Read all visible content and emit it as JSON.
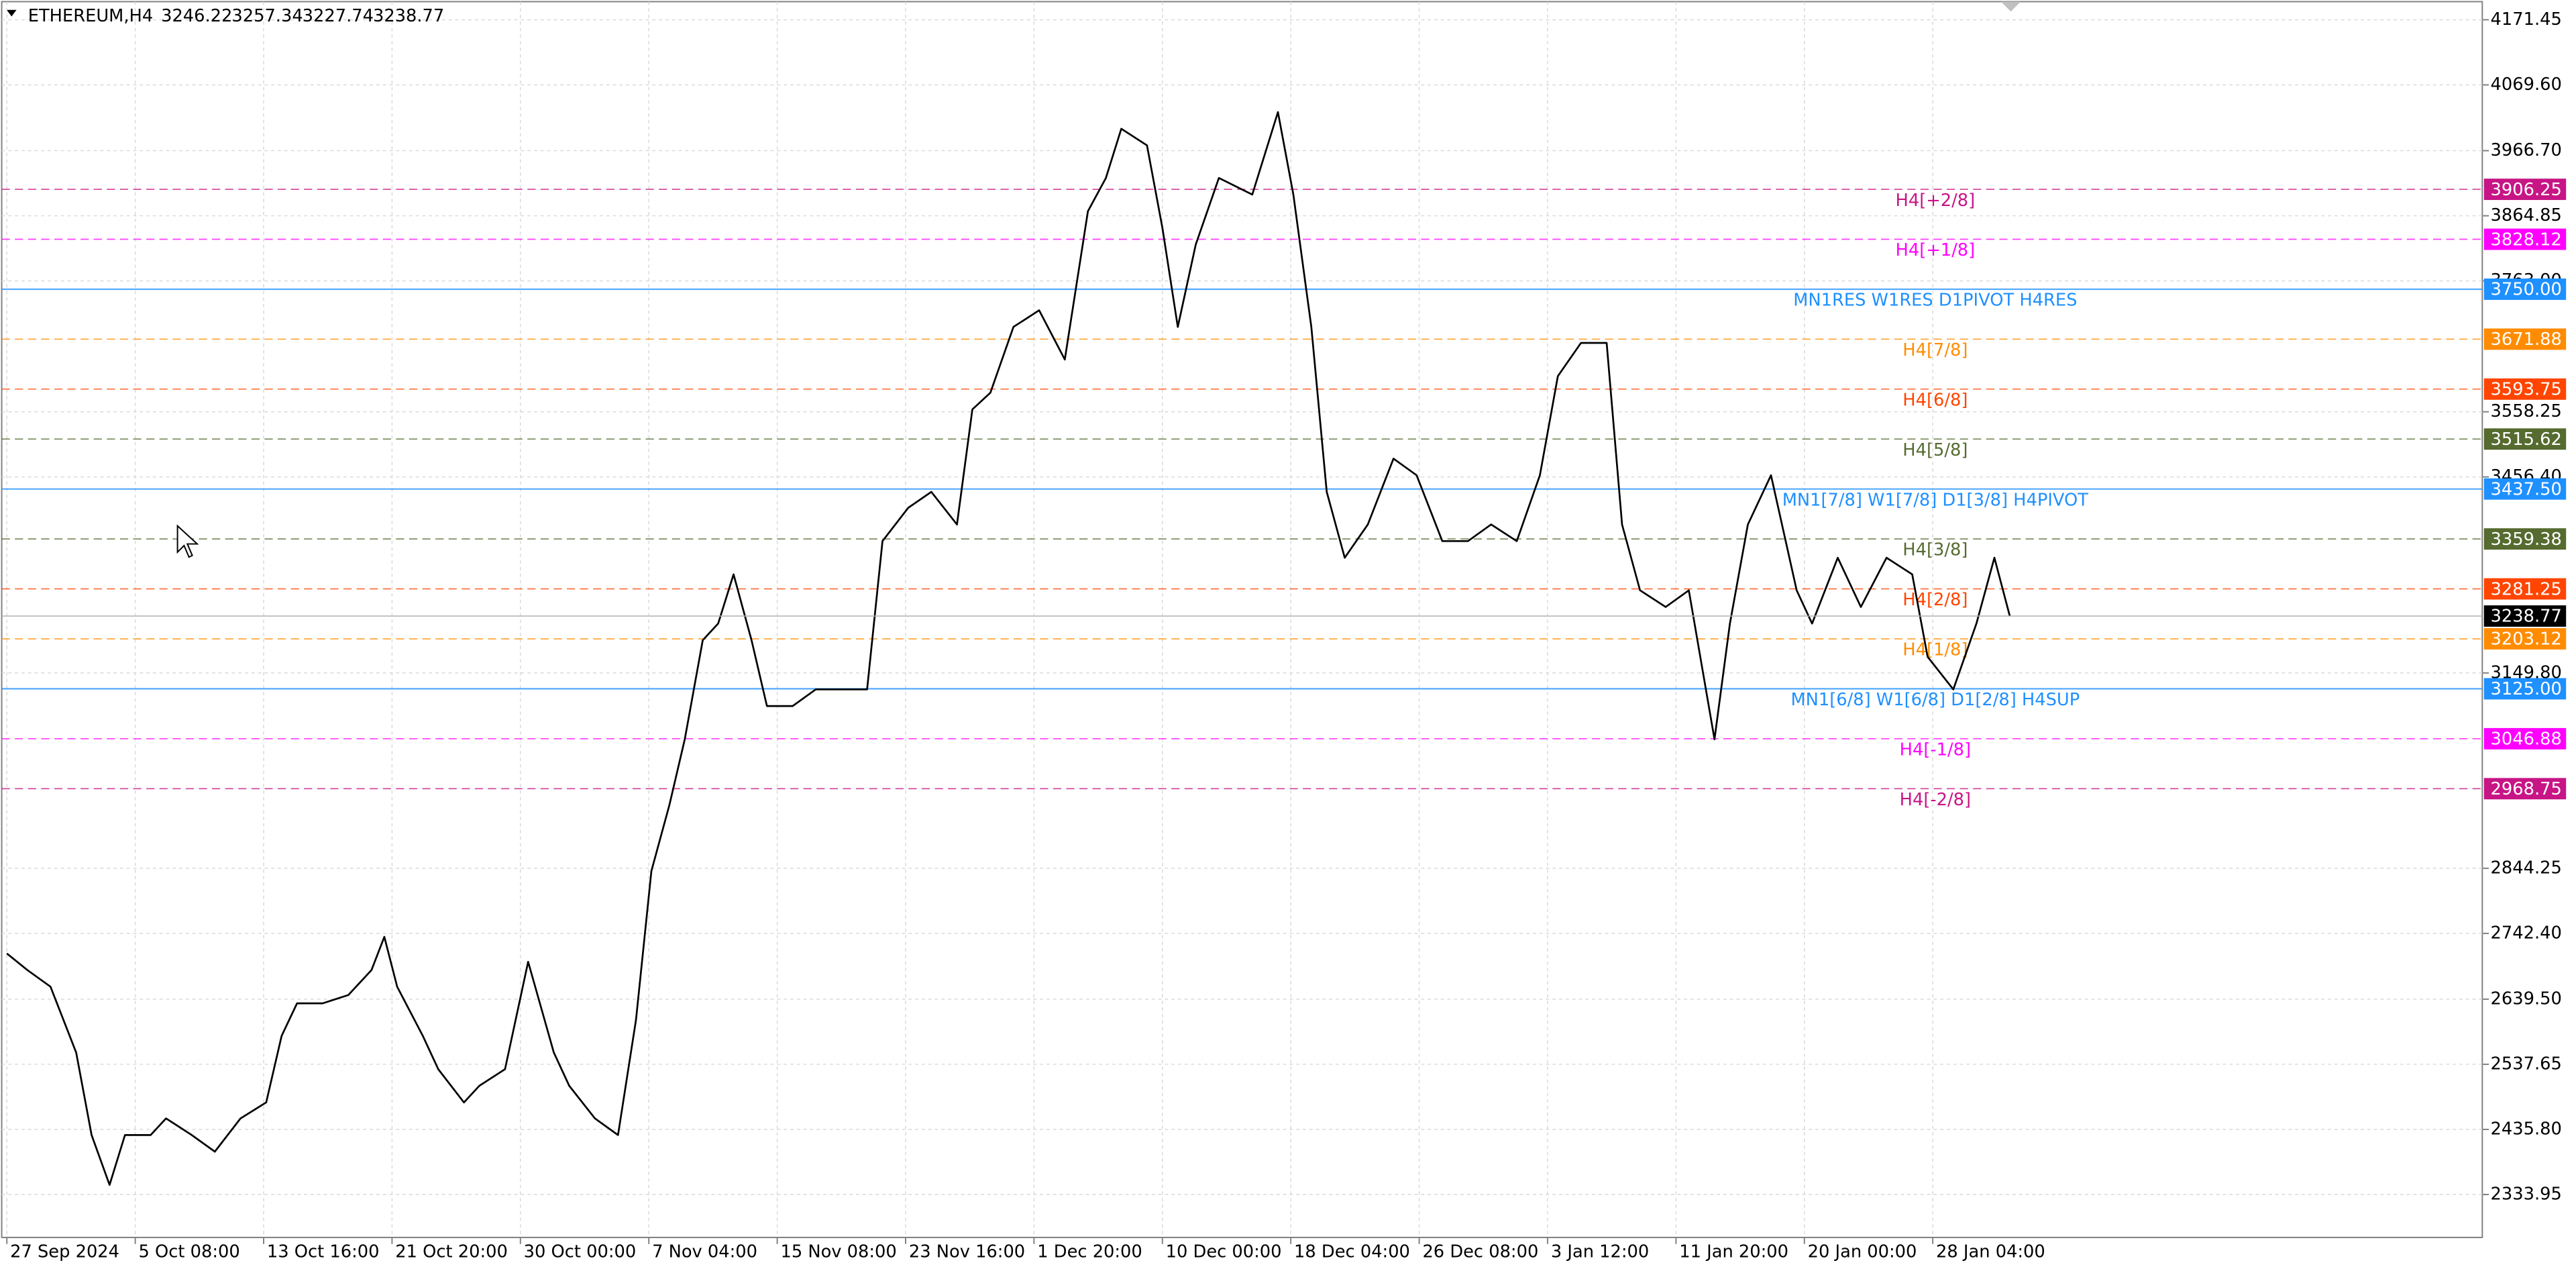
{
  "chart_data": {
    "type": "line",
    "title": "ETHEREUM,H4",
    "ohlc": [
      3246.22,
      3257.34,
      3227.74,
      3238.77
    ],
    "color": "#000000",
    "x": [
      0,
      8,
      17,
      27,
      33,
      40,
      46,
      56,
      62,
      72,
      81,
      91,
      101,
      107,
      113,
      123,
      133,
      142,
      147,
      152,
      162,
      168,
      178,
      184,
      194,
      203,
      213,
      219,
      229,
      238,
      245,
      251,
      258,
      264,
      271,
      277,
      283,
      290,
      296,
      306,
      315,
      325,
      335,
      341,
      351,
      360,
      370,
      376,
      383,
      392,
      402,
      412,
      421,
      428,
      434,
      444,
      450,
      456,
      463,
      472,
      485,
      495,
      501,
      508,
      514,
      521,
      530,
      540,
      549,
      559,
      569,
      578,
      588,
      597,
      604,
      613,
      623,
      629,
      636,
      646,
      655,
      665,
      671,
      678,
      687,
      697,
      703,
      713,
      722,
      732,
      742,
      748,
      758,
      767,
      774,
      780
    ],
    "values": [
      2711,
      2685,
      2659,
      2556,
      2427,
      2349,
      2427,
      2427,
      2453,
      2427,
      2401,
      2453,
      2478,
      2582,
      2633,
      2633,
      2646,
      2685,
      2737,
      2659,
      2582,
      2530,
      2478,
      2504,
      2530,
      2698,
      2556,
      2504,
      2453,
      2427,
      2607,
      2840,
      2943,
      3046,
      3201,
      3227,
      3304,
      3201,
      3098,
      3098,
      3124,
      3124,
      3124,
      3356,
      3408,
      3433,
      3382,
      3562,
      3588,
      3691,
      3717,
      3640,
      3872,
      3924,
      4001,
      3975,
      3846,
      3691,
      3820,
      3924,
      3898,
      4027,
      3898,
      3691,
      3433,
      3330,
      3382,
      3485,
      3459,
      3356,
      3356,
      3382,
      3356,
      3459,
      3614,
      3666,
      3666,
      3382,
      3279,
      3253,
      3279,
      3046,
      3227,
      3382,
      3459,
      3279,
      3227,
      3330,
      3253,
      3330,
      3304,
      3175,
      3124,
      3227,
      3330,
      3238.77
    ],
    "xlim": [
      -2,
      964
    ],
    "ylim": [
      2266.8,
      4199.8
    ],
    "xticks": [
      {
        "value": 0,
        "label": "27 Sep 2024"
      },
      {
        "value": 50,
        "label": "5 Oct 08:00"
      },
      {
        "value": 100,
        "label": "13 Oct 16:00"
      },
      {
        "value": 150,
        "label": "21 Oct 20:00"
      },
      {
        "value": 200,
        "label": "30 Oct 00:00"
      },
      {
        "value": 250,
        "label": "7 Nov 04:00"
      },
      {
        "value": 300,
        "label": "15 Nov 08:00"
      },
      {
        "value": 350,
        "label": "23 Nov 16:00"
      },
      {
        "value": 400,
        "label": "1 Dec 20:00"
      },
      {
        "value": 450,
        "label": "10 Dec 00:00"
      },
      {
        "value": 500,
        "label": "18 Dec 04:00"
      },
      {
        "value": 550,
        "label": "26 Dec 08:00"
      },
      {
        "value": 600,
        "label": "3 Jan 12:00"
      },
      {
        "value": 650,
        "label": "11 Jan 20:00"
      },
      {
        "value": 700,
        "label": "20 Jan 00:00"
      },
      {
        "value": 750,
        "label": "28 Jan 04:00"
      }
    ],
    "yticks": [
      4171.45,
      {
        "value": 4069.6,
        "label": "4069.60"
      },
      {
        "value": 3966.7,
        "label": "3966.70"
      },
      3864.85,
      {
        "value": 3763,
        "label": "3763.00"
      },
      3558.25,
      {
        "value": 3456.4,
        "label": "3456.40"
      },
      {
        "value": 3149.8,
        "label": "3149.80"
      },
      2844.25,
      {
        "value": 2742.4,
        "label": "2742.40"
      },
      {
        "value": 2639.5,
        "label": "2639.50"
      },
      2537.65,
      {
        "value": 2435.8,
        "label": "2435.80"
      },
      2333.95
    ],
    "grid": true,
    "levels": [
      {
        "value": 3906.25,
        "label": "H4[+2/8]",
        "color": "#c71585",
        "style": "dashed"
      },
      {
        "value": 3828.12,
        "label": "H4[+1/8]",
        "color": "#ff00ff",
        "style": "dashed"
      },
      {
        "value": 3750,
        "value_label": "3750.00",
        "label": "MN1RES W1RES D1PIVOT H4RES",
        "color": "#1e90ff",
        "style": "solid"
      },
      {
        "value": 3671.88,
        "label": "H4[7/8]",
        "color": "#ff8c00",
        "style": "dashed"
      },
      {
        "value": 3593.75,
        "label": "H4[6/8]",
        "color": "#ff4500",
        "style": "dashed"
      },
      {
        "value": 3515.62,
        "label": "H4[5/8]",
        "color": "#556b2f",
        "style": "dashed"
      },
      {
        "value": 3437.5,
        "value_label": "3437.50",
        "label": "MN1[7/8] W1[7/8] D1[3/8] H4PIVOT",
        "color": "#1e90ff",
        "style": "solid"
      },
      {
        "value": 3359.38,
        "label": "H4[3/8]",
        "color": "#556b2f",
        "style": "dashed"
      },
      {
        "value": 3281.25,
        "label": "H4[2/8]",
        "color": "#ff4500",
        "style": "dashed"
      },
      {
        "value": 3203.12,
        "label": "H4[1/8]",
        "color": "#ff8c00",
        "style": "dashed"
      },
      {
        "value": 3125,
        "value_label": "3125.00",
        "label": "MN1[6/8] W1[6/8] D1[2/8] H4SUP",
        "color": "#1e90ff",
        "style": "solid"
      },
      {
        "value": 3046.88,
        "label": "H4[-1/8]",
        "color": "#ff00ff",
        "style": "dashed"
      },
      {
        "value": 2968.75,
        "label": "H4[-2/8]",
        "color": "#c71585",
        "style": "dashed"
      }
    ]
  }
}
